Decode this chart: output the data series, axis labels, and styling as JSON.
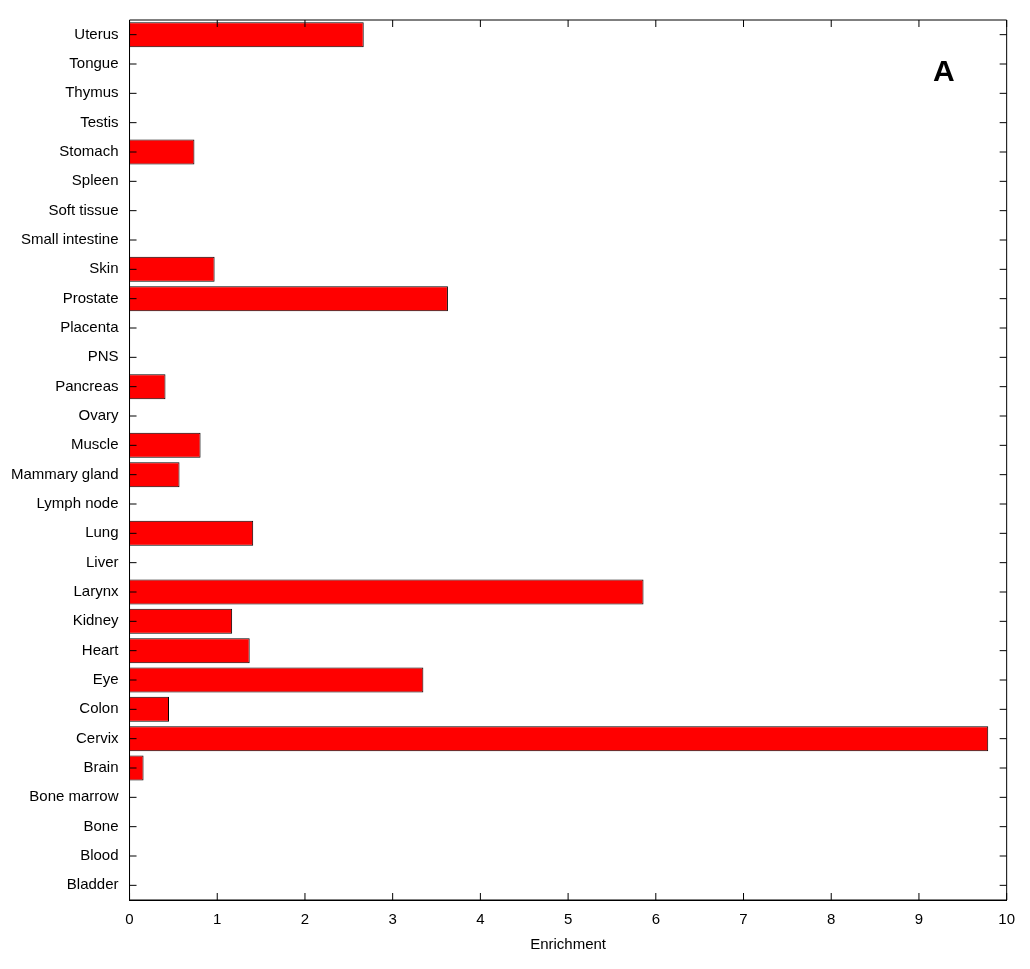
{
  "chart_data": {
    "type": "bar",
    "orientation": "horizontal",
    "xlabel": "Enrichment",
    "categories": [
      "Uterus",
      "Tongue",
      "Thymus",
      "Testis",
      "Stomach",
      "Spleen",
      "Soft tissue",
      "Small intestine",
      "Skin",
      "Prostate",
      "Placenta",
      "PNS",
      "Pancreas",
      "Ovary",
      "Muscle",
      "Mammary gland",
      "Lymph node",
      "Lung",
      "Liver",
      "Larynx",
      "Kidney",
      "Heart",
      "Eye",
      "Colon",
      "Cervix",
      "Brain",
      "Bone marrow",
      "Bone",
      "Blood",
      "Bladder"
    ],
    "values": [
      2.67,
      0,
      0,
      0,
      0.74,
      0,
      0,
      0,
      0.97,
      3.63,
      0,
      0,
      0.41,
      0,
      0.81,
      0.57,
      0,
      1.41,
      0,
      5.86,
      1.17,
      1.37,
      3.35,
      0.45,
      9.79,
      0.16,
      0,
      0,
      0,
      0
    ],
    "color": "#ff0000",
    "xlim": [
      0,
      10
    ],
    "xticks": [
      0,
      1,
      2,
      3,
      4,
      5,
      6,
      7,
      8,
      9,
      10
    ],
    "annotations": [
      "A"
    ]
  }
}
